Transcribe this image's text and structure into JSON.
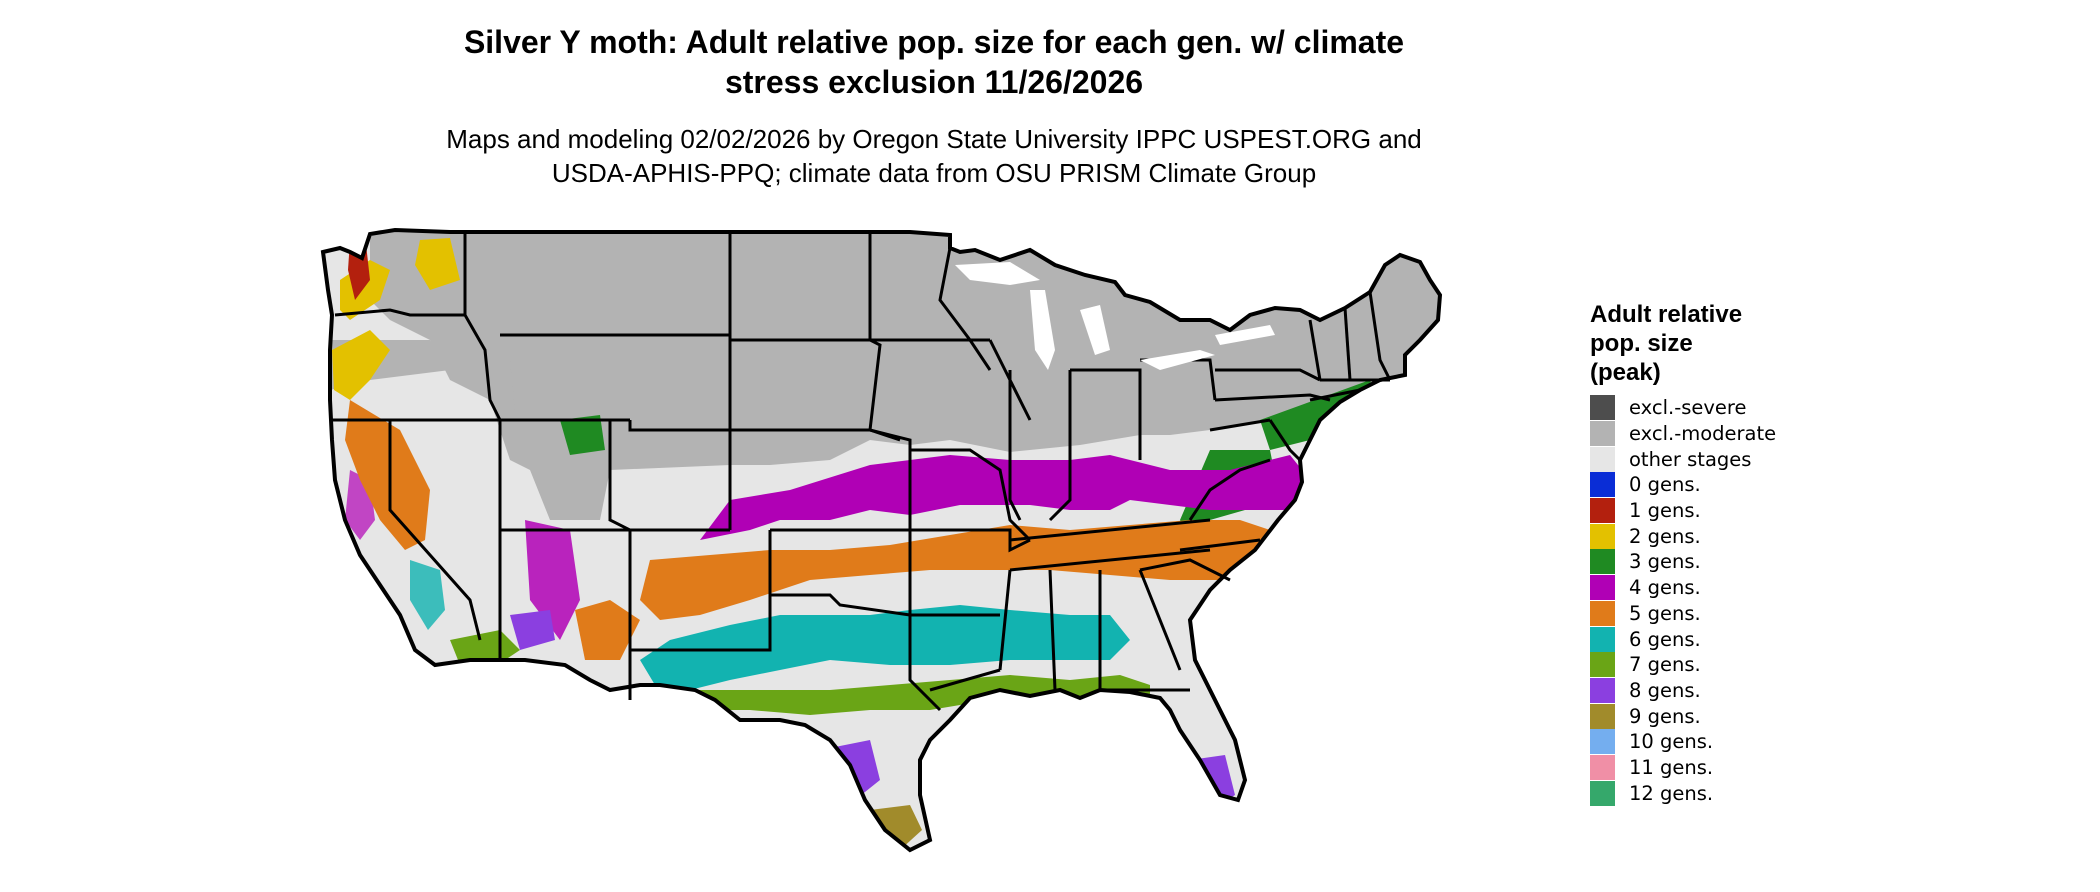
{
  "title": {
    "line1": "Silver Y moth: Adult relative pop. size for each gen. w/ climate",
    "line2": "stress exclusion 11/26/2026"
  },
  "subtitle": {
    "line1": "Maps and modeling 02/02/2026 by Oregon State University IPPC USPEST.ORG and",
    "line2": "USDA-APHIS-PPQ; climate data from OSU PRISM Climate Group"
  },
  "legend": {
    "title_line1": "Adult relative",
    "title_line2": "pop. size",
    "title_line3": "(peak)",
    "items": [
      {
        "label": "excl.-severe",
        "color": "#4d4d4d"
      },
      {
        "label": "excl.-moderate",
        "color": "#b3b3b3"
      },
      {
        "label": "other stages",
        "color": "#e6e6e6"
      },
      {
        "label": "0 gens.",
        "color": "#0a2dd6"
      },
      {
        "label": "1 gens.",
        "color": "#b3200e"
      },
      {
        "label": "2 gens.",
        "color": "#e3c100"
      },
      {
        "label": "3 gens.",
        "color": "#1f8a22"
      },
      {
        "label": "4 gens.",
        "color": "#b000b5"
      },
      {
        "label": "5 gens.",
        "color": "#e07b1a"
      },
      {
        "label": "6 gens.",
        "color": "#12b3b0"
      },
      {
        "label": "7 gens.",
        "color": "#6aa516"
      },
      {
        "label": "8 gens.",
        "color": "#8b3fe0"
      },
      {
        "label": "9 gens.",
        "color": "#a18b2b"
      },
      {
        "label": "10 gens.",
        "color": "#74aeef"
      },
      {
        "label": "11 gens.",
        "color": "#f08fa6"
      },
      {
        "label": "12 gens.",
        "color": "#35a86b"
      }
    ]
  },
  "map": {
    "state_border_color": "#000000",
    "excluded_color": "#b3b3b3",
    "other_stages_color": "#e6e6e6"
  }
}
